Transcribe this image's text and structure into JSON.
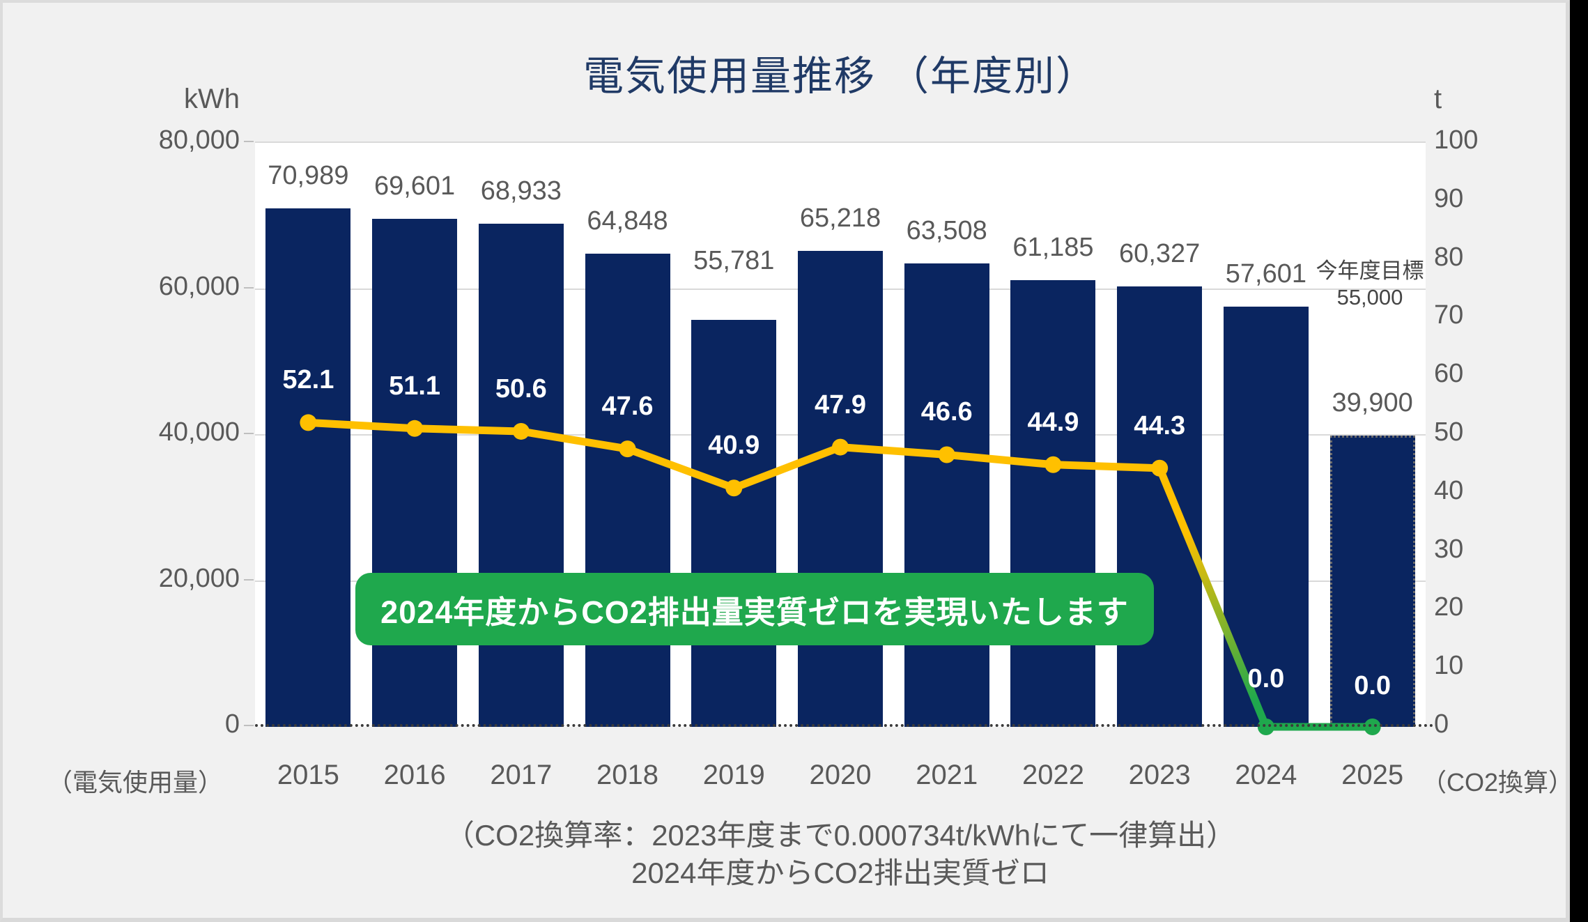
{
  "chart_data": {
    "type": "bar+line",
    "title": "電気使用量推移 （年度別）",
    "categories": [
      "2015",
      "2016",
      "2017",
      "2018",
      "2019",
      "2020",
      "2021",
      "2022",
      "2023",
      "2024",
      "2025"
    ],
    "series": [
      {
        "name": "電気使用量",
        "type": "bar",
        "axis": "left",
        "unit": "kWh",
        "values": [
          70989,
          69601,
          68933,
          64848,
          55781,
          65218,
          63508,
          61185,
          60327,
          57601,
          39900
        ],
        "labels": [
          "70,989",
          "69,601",
          "68,933",
          "64,848",
          "55,781",
          "65,218",
          "63,508",
          "61,185",
          "60,327",
          "57,601",
          "39,900"
        ],
        "forecast_index": 10
      },
      {
        "name": "CO2換算",
        "type": "line",
        "axis": "right",
        "unit": "t",
        "values": [
          52.1,
          51.1,
          50.6,
          47.6,
          40.9,
          47.9,
          46.6,
          44.9,
          44.3,
          0,
          0
        ],
        "labels": [
          "52.1",
          "51.1",
          "50.6",
          "47.6",
          "40.9",
          "47.9",
          "46.6",
          "44.9",
          "44.3",
          "0.0",
          "0.0"
        ]
      }
    ],
    "left_axis": {
      "unit": "kWh",
      "min": 0,
      "max": 80000,
      "ticks": [
        {
          "label": "80,000",
          "value": 80000
        },
        {
          "label": "60,000",
          "value": 60000
        },
        {
          "label": "40,000",
          "value": 40000
        },
        {
          "label": "20,000",
          "value": 20000
        },
        {
          "label": "0",
          "value": 0
        }
      ]
    },
    "right_axis": {
      "unit": "t",
      "min": 0,
      "max": 100,
      "ticks": [
        {
          "label": "100",
          "value": 100
        },
        {
          "label": "90",
          "value": 90
        },
        {
          "label": "80",
          "value": 80
        },
        {
          "label": "70",
          "value": 70
        },
        {
          "label": "60",
          "value": 60
        },
        {
          "label": "50",
          "value": 50
        },
        {
          "label": "40",
          "value": 40
        },
        {
          "label": "30",
          "value": 30
        },
        {
          "label": "20",
          "value": 20
        },
        {
          "label": "10",
          "value": 10
        },
        {
          "label": "0",
          "value": 0
        }
      ]
    },
    "gridlines_at": [
      60000,
      40000,
      20000
    ],
    "legend": "none",
    "grid": "horizontal"
  },
  "captions": {
    "left": "（電気使用量）",
    "right": "（CO2換算）"
  },
  "annotations": {
    "target_title": "今年度目標",
    "target_value": "55,000",
    "banner": "2024年度からCO2排出量実質ゼロを実現いたします"
  },
  "footnotes": [
    "（CO2換算率：2023年度まで0.000734t/kWhにて一律算出）",
    "2024年度からCO2排出実質ゼロ"
  ],
  "colors": {
    "bar": "#0A2560",
    "line": "#FFC000",
    "line_zero": "#1FA84D",
    "banner": "#1FA84D",
    "title": "#203A66",
    "axis_text": "#595959",
    "bar_label": "#595959",
    "line_label": "#FFFFFF"
  }
}
